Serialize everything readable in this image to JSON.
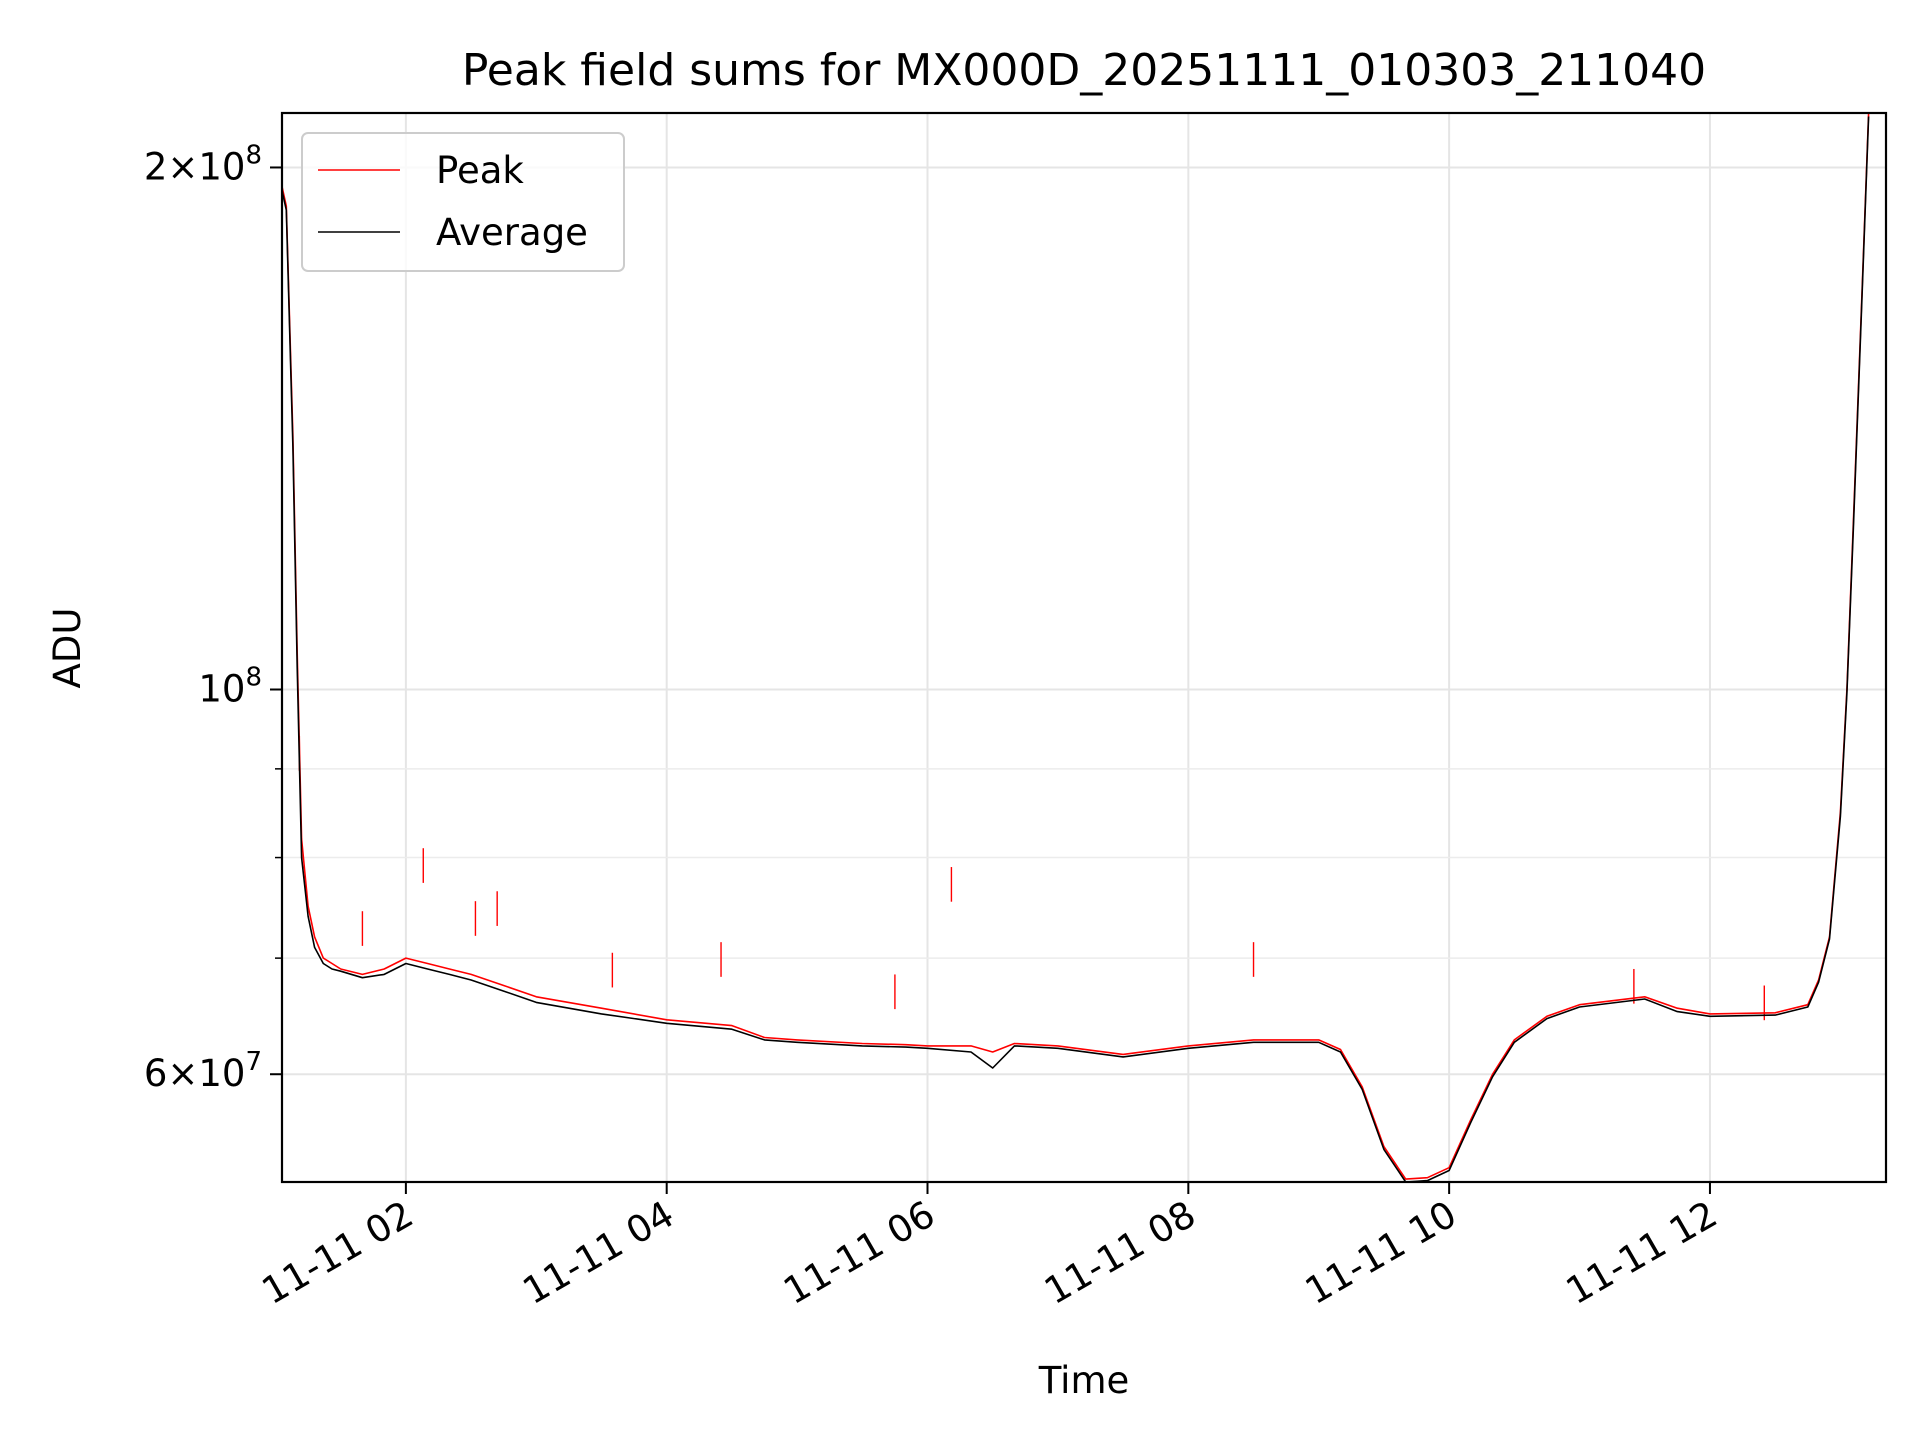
{
  "chart_data": {
    "type": "line",
    "title": "Peak field sums for MX000D_20251111_010303_211040",
    "xlabel": "Time",
    "ylabel": "ADU",
    "x_range": [
      "2025-11-11 01:03",
      "2025-11-11 13:21"
    ],
    "y_range": [
      52000000,
      215000000
    ],
    "y_scale": "log",
    "grid": true,
    "legend_position": "upper left",
    "x_ticks": [
      {
        "value": "2025-11-11 02:00",
        "label": "11-11 02"
      },
      {
        "value": "2025-11-11 04:00",
        "label": "11-11 04"
      },
      {
        "value": "2025-11-11 06:00",
        "label": "11-11 06"
      },
      {
        "value": "2025-11-11 08:00",
        "label": "11-11 08"
      },
      {
        "value": "2025-11-11 10:00",
        "label": "11-11 10"
      },
      {
        "value": "2025-11-11 12:00",
        "label": "11-11 12"
      }
    ],
    "y_ticks_major": [
      {
        "value": 60000000,
        "mantissa": "6",
        "times": "×",
        "base": "10",
        "exp": "7"
      },
      {
        "value": 100000000,
        "mantissa": "",
        "times": "",
        "base": "10",
        "exp": "8"
      },
      {
        "value": 200000000,
        "mantissa": "2",
        "times": "×",
        "base": "10",
        "exp": "8"
      }
    ],
    "y_ticks_minor": [
      70000000,
      80000000,
      90000000
    ],
    "series": [
      {
        "name": "Peak",
        "color": "#ff0000",
        "x": [
          "2025-11-11 01:03",
          "2025-11-11 01:05",
          "2025-11-11 01:08",
          "2025-11-11 01:10",
          "2025-11-11 01:12",
          "2025-11-11 01:15",
          "2025-11-11 01:18",
          "2025-11-11 01:22",
          "2025-11-11 01:26",
          "2025-11-11 01:30",
          "2025-11-11 01:40",
          "2025-11-11 01:50",
          "2025-11-11 02:00",
          "2025-11-11 02:10",
          "2025-11-11 02:20",
          "2025-11-11 02:30",
          "2025-11-11 02:45",
          "2025-11-11 03:00",
          "2025-11-11 03:30",
          "2025-11-11 04:00",
          "2025-11-11 04:30",
          "2025-11-11 04:45",
          "2025-11-11 05:00",
          "2025-11-11 05:30",
          "2025-11-11 05:50",
          "2025-11-11 06:00",
          "2025-11-11 06:20",
          "2025-11-11 06:30",
          "2025-11-11 06:40",
          "2025-11-11 07:00",
          "2025-11-11 07:30",
          "2025-11-11 08:00",
          "2025-11-11 08:30",
          "2025-11-11 09:00",
          "2025-11-11 09:10",
          "2025-11-11 09:20",
          "2025-11-11 09:30",
          "2025-11-11 09:40",
          "2025-11-11 09:50",
          "2025-11-11 10:00",
          "2025-11-11 10:10",
          "2025-11-11 10:20",
          "2025-11-11 10:30",
          "2025-11-11 10:45",
          "2025-11-11 11:00",
          "2025-11-11 11:30",
          "2025-11-11 11:45",
          "2025-11-11 12:00",
          "2025-11-11 12:30",
          "2025-11-11 12:45",
          "2025-11-11 12:50",
          "2025-11-11 12:55",
          "2025-11-11 13:00",
          "2025-11-11 13:03",
          "2025-11-11 13:06",
          "2025-11-11 13:10",
          "2025-11-11 13:13"
        ],
        "y": [
          195000000,
          190000000,
          140000000,
          105000000,
          82000000,
          75000000,
          72000000,
          70000000,
          69500000,
          69000000,
          68500000,
          69000000,
          70000000,
          69500000,
          69000000,
          68500000,
          67500000,
          66500000,
          65500000,
          64500000,
          64000000,
          63000000,
          62800000,
          62500000,
          62400000,
          62300000,
          62300000,
          61800000,
          62500000,
          62300000,
          61600000,
          62300000,
          62800000,
          62800000,
          62000000,
          59000000,
          54500000,
          52200000,
          52300000,
          53000000,
          56500000,
          60000000,
          62800000,
          64800000,
          65800000,
          66500000,
          65500000,
          65000000,
          65100000,
          65800000,
          68000000,
          72000000,
          85000000,
          100000000,
          125000000,
          170000000,
          215000000
        ],
        "spikes": [
          {
            "x": "2025-11-11 01:11",
            "y": 94000000
          },
          {
            "x": "2025-11-11 01:40",
            "y": 74500000
          },
          {
            "x": "2025-11-11 02:08",
            "y": 81000000
          },
          {
            "x": "2025-11-11 02:32",
            "y": 75500000
          },
          {
            "x": "2025-11-11 02:42",
            "y": 76500000
          },
          {
            "x": "2025-11-11 03:35",
            "y": 70500000
          },
          {
            "x": "2025-11-11 04:25",
            "y": 71500000
          },
          {
            "x": "2025-11-11 05:45",
            "y": 68500000
          },
          {
            "x": "2025-11-11 06:11",
            "y": 79000000
          },
          {
            "x": "2025-11-11 08:30",
            "y": 71500000
          },
          {
            "x": "2025-11-11 11:25",
            "y": 69000000
          },
          {
            "x": "2025-11-11 12:25",
            "y": 67500000
          }
        ]
      },
      {
        "name": "Average",
        "color": "#000000",
        "x": [
          "2025-11-11 01:03",
          "2025-11-11 01:05",
          "2025-11-11 01:08",
          "2025-11-11 01:10",
          "2025-11-11 01:12",
          "2025-11-11 01:15",
          "2025-11-11 01:18",
          "2025-11-11 01:22",
          "2025-11-11 01:26",
          "2025-11-11 01:30",
          "2025-11-11 01:40",
          "2025-11-11 01:50",
          "2025-11-11 02:00",
          "2025-11-11 02:10",
          "2025-11-11 02:20",
          "2025-11-11 02:30",
          "2025-11-11 02:45",
          "2025-11-11 03:00",
          "2025-11-11 03:30",
          "2025-11-11 04:00",
          "2025-11-11 04:30",
          "2025-11-11 04:45",
          "2025-11-11 05:00",
          "2025-11-11 05:30",
          "2025-11-11 05:50",
          "2025-11-11 06:00",
          "2025-11-11 06:20",
          "2025-11-11 06:30",
          "2025-11-11 06:40",
          "2025-11-11 07:00",
          "2025-11-11 07:30",
          "2025-11-11 08:00",
          "2025-11-11 08:30",
          "2025-11-11 09:00",
          "2025-11-11 09:10",
          "2025-11-11 09:20",
          "2025-11-11 09:30",
          "2025-11-11 09:40",
          "2025-11-11 09:50",
          "2025-11-11 10:00",
          "2025-11-11 10:10",
          "2025-11-11 10:20",
          "2025-11-11 10:30",
          "2025-11-11 10:45",
          "2025-11-11 11:00",
          "2025-11-11 11:30",
          "2025-11-11 11:45",
          "2025-11-11 12:00",
          "2025-11-11 12:30",
          "2025-11-11 12:45",
          "2025-11-11 12:50",
          "2025-11-11 12:55",
          "2025-11-11 13:00",
          "2025-11-11 13:03",
          "2025-11-11 13:06",
          "2025-11-11 13:10",
          "2025-11-11 13:13"
        ],
        "y": [
          194000000,
          189000000,
          138000000,
          103000000,
          80000000,
          74000000,
          71000000,
          69500000,
          69000000,
          68800000,
          68200000,
          68500000,
          69500000,
          69000000,
          68500000,
          68000000,
          67000000,
          66000000,
          65000000,
          64200000,
          63700000,
          62800000,
          62600000,
          62300000,
          62200000,
          62100000,
          61800000,
          60500000,
          62300000,
          62100000,
          61400000,
          62100000,
          62600000,
          62600000,
          61800000,
          58800000,
          54300000,
          52000000,
          52100000,
          52800000,
          56300000,
          59800000,
          62600000,
          64600000,
          65600000,
          66300000,
          65200000,
          64800000,
          64900000,
          65600000,
          67800000,
          71800000,
          84500000,
          99500000,
          124000000,
          169000000,
          214000000
        ]
      }
    ]
  }
}
